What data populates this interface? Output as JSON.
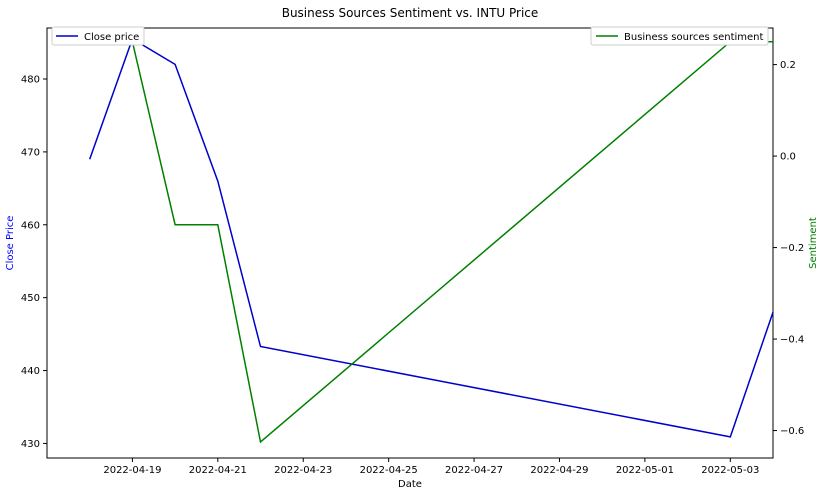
{
  "chart_data": {
    "type": "line",
    "title": "Business Sources Sentiment vs. INTU Price",
    "xlabel": "Date",
    "ylabel_left": "Close Price",
    "ylabel_right": "Sentiment",
    "colors": {
      "close": "#0000cc",
      "sentiment": "#008000",
      "ylabel_left": "#0000ff",
      "ylabel_right": "#008000"
    },
    "xlim": [
      "2022-04-17",
      "2022-05-04"
    ],
    "ylim_left": [
      428,
      487
    ],
    "ylim_right": [
      -0.66,
      0.28
    ],
    "x_ticks": [
      "2022-04-19",
      "2022-04-21",
      "2022-04-23",
      "2022-04-25",
      "2022-04-27",
      "2022-04-29",
      "2022-05-01",
      "2022-05-03"
    ],
    "y_ticks_left": [
      430,
      440,
      450,
      460,
      470,
      480
    ],
    "y_ticks_right": [
      "0.2",
      "0.0",
      "−0.2",
      "−0.4",
      "−0.6"
    ],
    "y_ticks_right_values": [
      0.2,
      0.0,
      -0.2,
      -0.4,
      -0.6
    ],
    "series": [
      {
        "name": "Close price",
        "axis": "left",
        "x": [
          "2022-04-18",
          "2022-04-19",
          "2022-04-20",
          "2022-04-21",
          "2022-04-22",
          "2022-05-03",
          "2022-05-04"
        ],
        "y": [
          469.0,
          485.5,
          482.0,
          466.0,
          443.3,
          430.9,
          448.0
        ]
      },
      {
        "name": "Business sources sentiment",
        "axis": "right",
        "x": [
          "2022-04-18",
          "2022-04-19",
          "2022-04-20",
          "2022-04-21",
          "2022-04-22",
          "2022-05-03",
          "2022-05-04"
        ],
        "y": [
          0.25,
          0.25,
          -0.15,
          -0.15,
          -0.625,
          0.25,
          0.25
        ]
      }
    ],
    "legend_left": {
      "label": "Close price",
      "placement": "upper-left"
    },
    "legend_right": {
      "label": "Business sources sentiment",
      "placement": "upper-right"
    }
  }
}
